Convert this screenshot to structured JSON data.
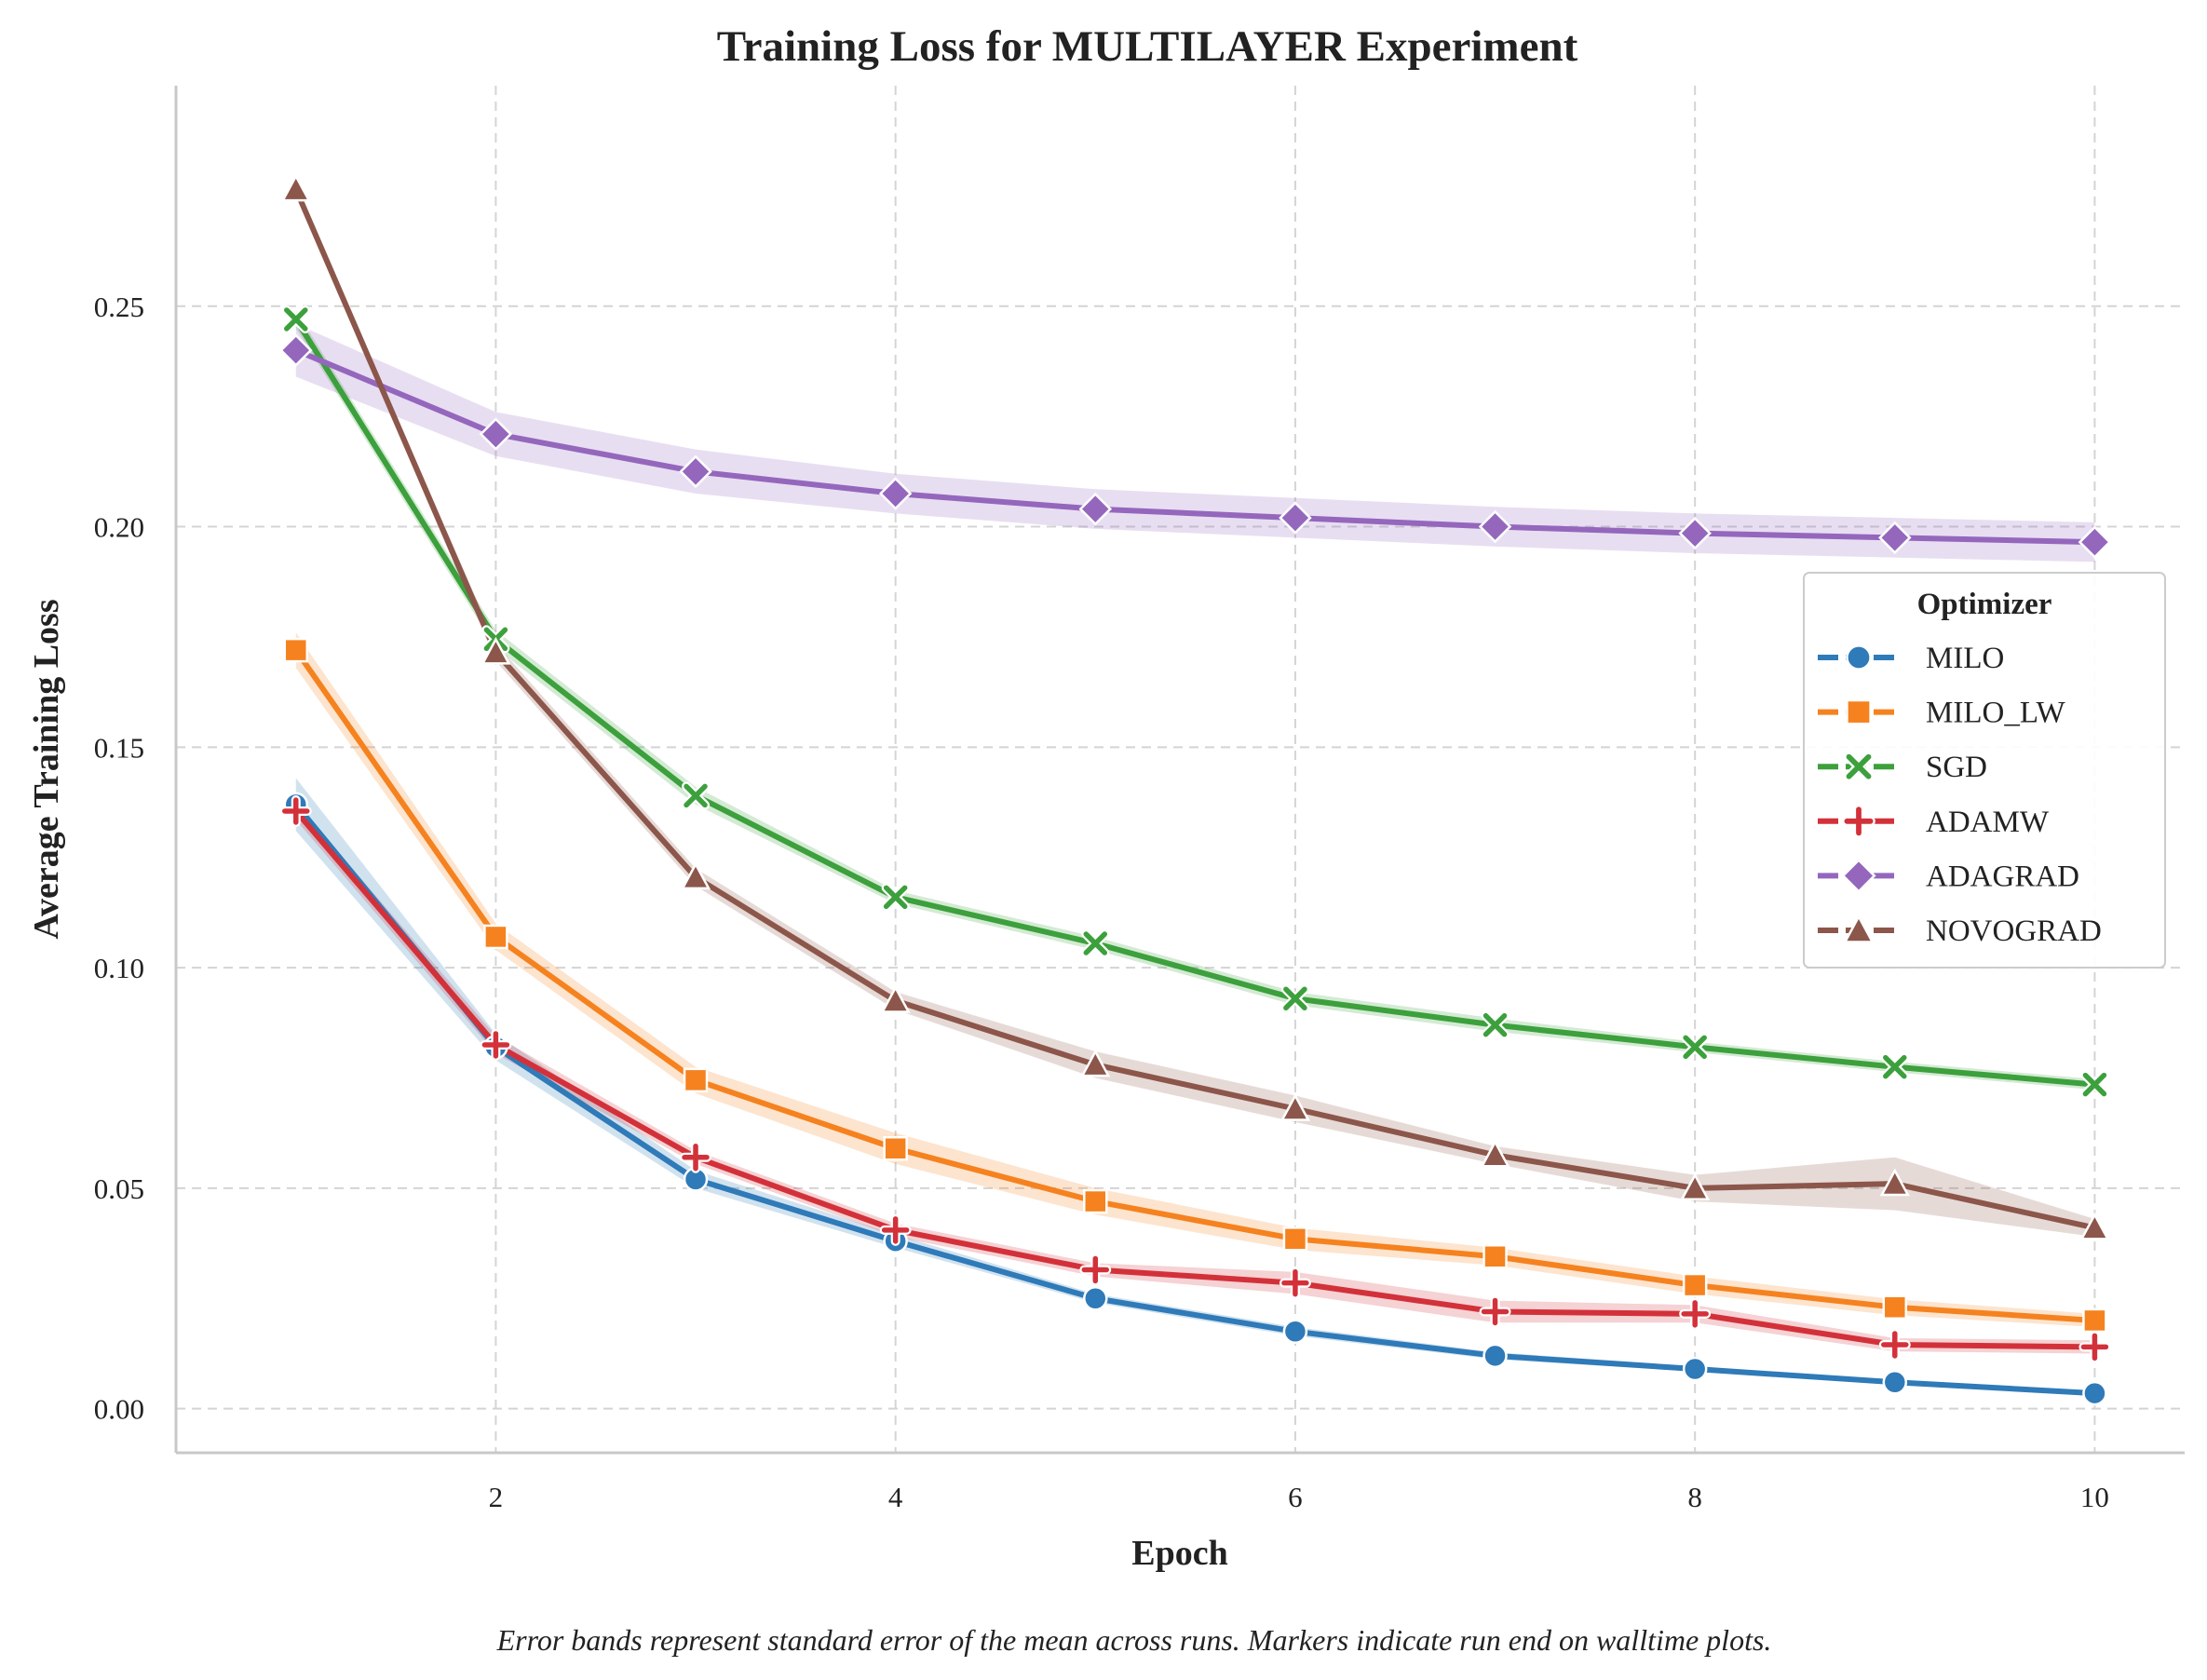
{
  "chart_data": {
    "type": "line",
    "title": "Training Loss for MULTILAYER Experiment",
    "xlabel": "Epoch",
    "ylabel": "Average Training Loss",
    "xlim": [
      0.4,
      10.45
    ],
    "ylim": [
      -0.01,
      0.3
    ],
    "xticks": [
      2,
      4,
      6,
      8,
      10
    ],
    "yticks": [
      0.0,
      0.05,
      0.1,
      0.15,
      0.2,
      0.25
    ],
    "ytick_labels": [
      "0.00",
      "0.05",
      "0.10",
      "0.15",
      "0.20",
      "0.25"
    ],
    "grid": true,
    "legend": {
      "title": "Optimizer",
      "position": "right"
    },
    "footnote": "Error bands represent standard error of the mean across runs. Markers indicate run end on walltime plots.",
    "x": [
      1,
      2,
      3,
      4,
      5,
      6,
      7,
      8,
      9,
      10
    ],
    "series": [
      {
        "name": "MILO",
        "color": "#2f7ab8",
        "marker": "circle",
        "values": [
          0.137,
          0.082,
          0.052,
          0.038,
          0.025,
          0.0175,
          0.012,
          0.009,
          0.006,
          0.0035
        ],
        "error": [
          0.006,
          0.003,
          0.002,
          0.0015,
          0.001,
          0.001,
          0.0008,
          0.0006,
          0.0005,
          0.0004
        ]
      },
      {
        "name": "MILO_LW",
        "color": "#f5821f",
        "marker": "square",
        "values": [
          0.172,
          0.107,
          0.0745,
          0.059,
          0.047,
          0.0385,
          0.0345,
          0.028,
          0.023,
          0.02
        ],
        "error": [
          0.004,
          0.003,
          0.003,
          0.0035,
          0.003,
          0.0025,
          0.002,
          0.002,
          0.0018,
          0.0015
        ]
      },
      {
        "name": "SGD",
        "color": "#3ca03c",
        "marker": "x",
        "values": [
          0.247,
          0.1745,
          0.139,
          0.116,
          0.1055,
          0.093,
          0.087,
          0.082,
          0.0775,
          0.0735
        ],
        "error": [
          0.002,
          0.002,
          0.002,
          0.0015,
          0.0015,
          0.0015,
          0.0015,
          0.0012,
          0.0012,
          0.0012
        ]
      },
      {
        "name": "ADAMW",
        "color": "#d3313a",
        "marker": "plus",
        "values": [
          0.1355,
          0.0825,
          0.057,
          0.0405,
          0.0315,
          0.0285,
          0.022,
          0.0215,
          0.0145,
          0.014
        ],
        "error": [
          0.002,
          0.002,
          0.0015,
          0.0015,
          0.0015,
          0.0025,
          0.0025,
          0.002,
          0.0015,
          0.0015
        ]
      },
      {
        "name": "ADAGRAD",
        "color": "#9467bd",
        "marker": "diamond",
        "values": [
          0.24,
          0.221,
          0.2125,
          0.2075,
          0.204,
          0.202,
          0.2,
          0.1985,
          0.1975,
          0.1965
        ],
        "error": [
          0.006,
          0.005,
          0.005,
          0.0045,
          0.0045,
          0.0045,
          0.0045,
          0.0045,
          0.0045,
          0.0045
        ]
      },
      {
        "name": "NOVOGRAD",
        "color": "#8c564b",
        "marker": "triangle",
        "values": [
          0.2765,
          0.1715,
          0.1205,
          0.0925,
          0.078,
          0.068,
          0.0575,
          0.05,
          0.051,
          0.041
        ],
        "error": [
          0.001,
          0.002,
          0.002,
          0.002,
          0.003,
          0.003,
          0.002,
          0.003,
          0.006,
          0.002
        ]
      }
    ]
  }
}
